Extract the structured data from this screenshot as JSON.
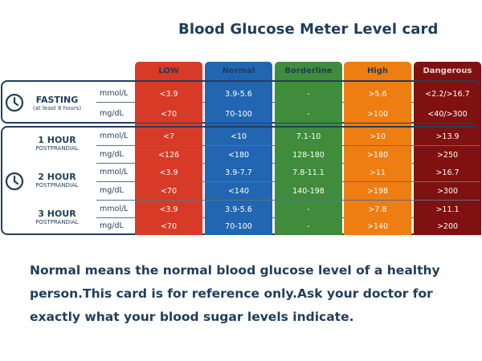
{
  "title": "Blood Glucose Meter Level card",
  "columns": [
    "LOW",
    "Normal",
    "Borderline",
    "High",
    "Dangerous"
  ],
  "colors": {
    "low": "#d73a27",
    "normal": "#2266b1",
    "borderline": "#3f8c3c",
    "high": "#ee7d12",
    "dangerous": "#7f1110",
    "frame": "#213f5e"
  },
  "fasting": {
    "label": "FASTING",
    "sublabel": "(at least 8 hours)",
    "icon": "clock-icon",
    "rows": [
      {
        "unit": "mmol/L",
        "values": [
          "<3.9",
          "3.9-5.6",
          "-",
          ">5.6",
          "<2.2/>16.7"
        ]
      },
      {
        "unit": "mg/dL",
        "values": [
          "<70",
          "70-100",
          "-",
          ">100",
          "<40/>300"
        ]
      }
    ]
  },
  "postprandial": [
    {
      "label": "1 HOUR",
      "sublabel": "POSTPRANDIAL",
      "rows": [
        {
          "unit": "mmol/L",
          "values": [
            "<7",
            "<10",
            "7.1-10",
            ">10",
            ">13.9"
          ]
        },
        {
          "unit": "mg/dL",
          "values": [
            "<126",
            "<180",
            "128-180",
            ">180",
            ">250"
          ]
        }
      ]
    },
    {
      "label": "2 HOUR",
      "sublabel": "POSTPRANDIAL",
      "icon": "clock-icon",
      "rows": [
        {
          "unit": "mmol/L",
          "values": [
            "<3.9",
            "3.9-7.7",
            "7.8-11.1",
            ">11",
            ">16.7"
          ]
        },
        {
          "unit": "mg/dL",
          "values": [
            "<70",
            "<140",
            "140-198",
            ">198",
            ">300"
          ]
        }
      ]
    },
    {
      "label": "3 HOUR",
      "sublabel": "POSTPRANDIAL",
      "rows": [
        {
          "unit": "mmol/L",
          "values": [
            "<3.9",
            "3.9-5.6",
            "-",
            ">7.8",
            ">11.1"
          ]
        },
        {
          "unit": "mg/dL",
          "values": [
            "<70",
            "70-100",
            "-",
            ">140",
            ">200"
          ]
        }
      ]
    }
  ],
  "note": {
    "line1": "Normal means the normal blood glucose level of a healthy",
    "line2": "person.This card is for reference only.Ask your doctor for",
    "line3": "exactly what your blood sugar levels indicate."
  }
}
